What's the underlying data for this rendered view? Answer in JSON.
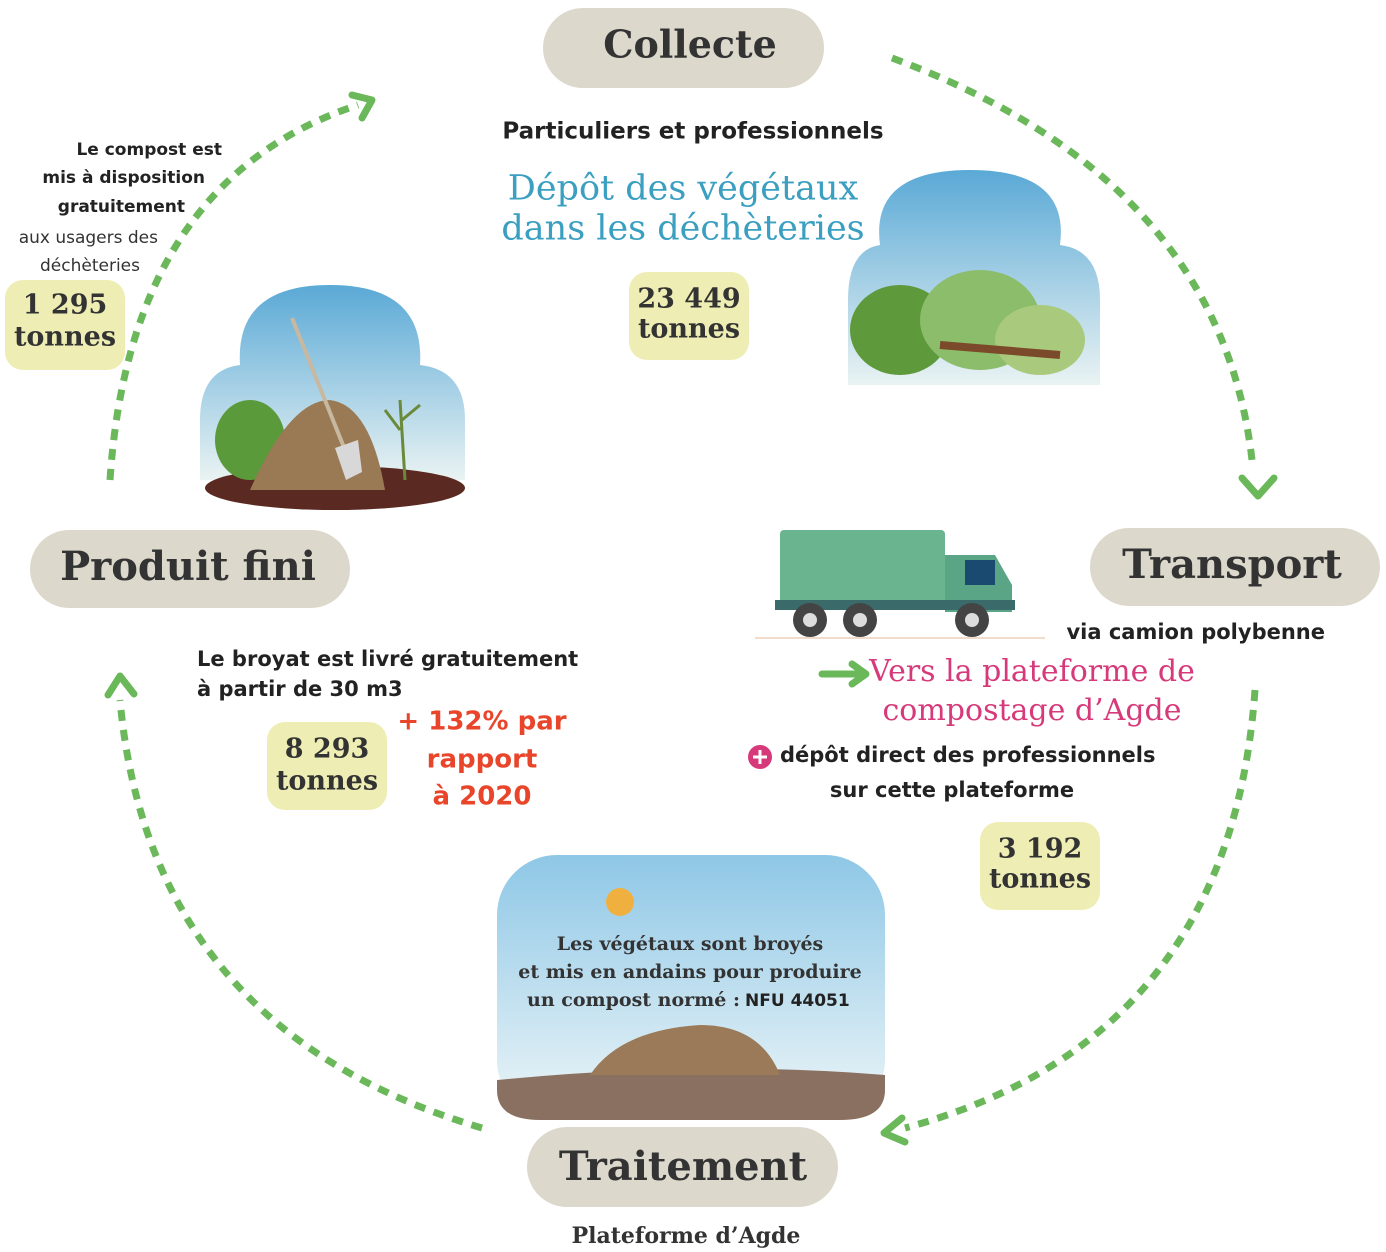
{
  "collecte": {
    "title": "Collecte",
    "subtitle": "Particuliers et professionnels",
    "description": [
      "Dépôt des végétaux",
      "dans les déchèteries"
    ],
    "amount": [
      "23 449",
      "tonnes"
    ]
  },
  "transport": {
    "title": "Transport",
    "note": "via camion polybenne",
    "destination": [
      "Vers la plateforme de",
      "compostage d’Agde"
    ],
    "extra": [
      "dépôt direct des professionnels",
      "sur cette plateforme"
    ],
    "amount": [
      "3 192",
      "tonnes"
    ]
  },
  "traitement": {
    "title": "Traitement",
    "subtitle": "Plateforme d’Agde",
    "description": [
      "Les végétaux sont broyés",
      "et mis en andains pour produire",
      "un compost normé :"
    ],
    "norm": "NFU 44051"
  },
  "produit_fini": {
    "title": "Produit fini",
    "note": [
      "Le broyat est livré gratuitement",
      "à partir de 30 m3"
    ],
    "amount": [
      "8 293",
      "tonnes"
    ],
    "growth": [
      "+ 132% par",
      "rapport",
      "à 2020"
    ]
  },
  "compost": {
    "note_bold": [
      "Le compost est",
      "mis à disposition",
      "gratuitement"
    ],
    "note": [
      "aux usagers des",
      "déchèteries"
    ],
    "amount": [
      "1 295",
      "tonnes"
    ]
  }
}
